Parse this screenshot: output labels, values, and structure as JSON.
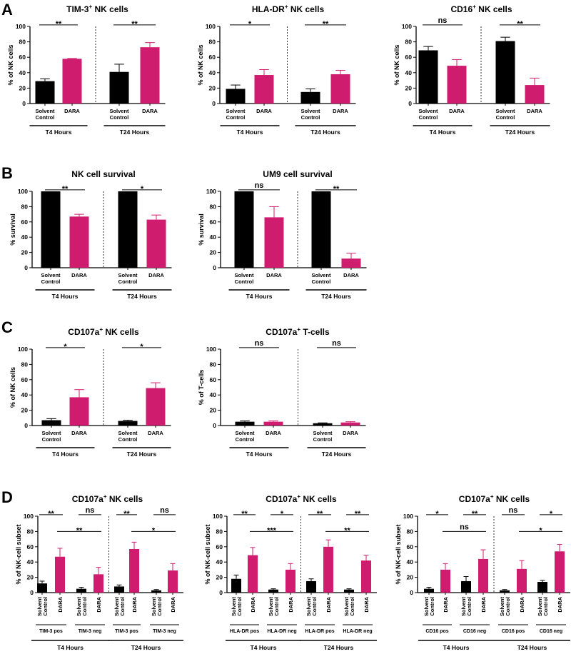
{
  "panel_labels": {
    "A": "A",
    "B": "B",
    "C": "C",
    "D": "D"
  },
  "colors": {
    "control": "#000000",
    "dara": "#d01c6e",
    "axis": "#000000"
  },
  "chart_data": [
    {
      "id": "A1",
      "panel": "A",
      "type": "bar",
      "title": "TIM-3",
      "title_sup": "+",
      "title_rest": " NK cells",
      "ylabel": "% of NK cells",
      "ylim": [
        0,
        100
      ],
      "yticks": [
        0,
        20,
        40,
        60,
        80,
        100
      ],
      "groups": [
        {
          "label": "T4 Hours",
          "bars": [
            {
              "cat": [
                "Solvent",
                "Control"
              ],
              "value": 29,
              "err": 3,
              "color": "control"
            },
            {
              "cat": [
                "DARA"
              ],
              "value": 58,
              "err": 0.5,
              "color": "dara"
            }
          ]
        },
        {
          "label": "T24 Hours",
          "bars": [
            {
              "cat": [
                "Solvent",
                "Control"
              ],
              "value": 41,
              "err": 10,
              "color": "control"
            },
            {
              "cat": [
                "DARA"
              ],
              "value": 73,
              "err": 6,
              "color": "dara"
            }
          ]
        }
      ],
      "sig": [
        {
          "a": 0,
          "b": 1,
          "text": "**",
          "level": 102
        },
        {
          "a": 2,
          "b": 3,
          "text": "**",
          "level": 102
        }
      ]
    },
    {
      "id": "A2",
      "panel": "A",
      "type": "bar",
      "title": "HLA-DR",
      "title_sup": "+",
      "title_rest": " NK cells",
      "ylabel": "% of NK cells",
      "ylim": [
        0,
        100
      ],
      "yticks": [
        0,
        20,
        40,
        60,
        80,
        100
      ],
      "groups": [
        {
          "label": "T4 Hours",
          "bars": [
            {
              "cat": [
                "Solvent",
                "Control"
              ],
              "value": 19,
              "err": 5,
              "color": "control"
            },
            {
              "cat": [
                "DARA"
              ],
              "value": 37,
              "err": 7,
              "color": "dara"
            }
          ]
        },
        {
          "label": "T24 Hours",
          "bars": [
            {
              "cat": [
                "Solvent",
                "Control"
              ],
              "value": 15,
              "err": 4,
              "color": "control"
            },
            {
              "cat": [
                "DARA"
              ],
              "value": 38,
              "err": 5,
              "color": "dara"
            }
          ]
        }
      ],
      "sig": [
        {
          "a": 0,
          "b": 1,
          "text": "*",
          "level": 102
        },
        {
          "a": 2,
          "b": 3,
          "text": "**",
          "level": 102
        }
      ]
    },
    {
      "id": "A3",
      "panel": "A",
      "type": "bar",
      "title": "CD16",
      "title_sup": "+",
      "title_rest": " NK cells",
      "ylabel": "% of NK cells",
      "ylim": [
        0,
        100
      ],
      "yticks": [
        0,
        20,
        40,
        60,
        80,
        100
      ],
      "groups": [
        {
          "label": "T4 Hours",
          "bars": [
            {
              "cat": [
                "Solvent",
                "Control"
              ],
              "value": 69,
              "err": 5,
              "color": "control"
            },
            {
              "cat": [
                "DARA"
              ],
              "value": 49,
              "err": 8,
              "color": "dara"
            }
          ]
        },
        {
          "label": "T24 Hours",
          "bars": [
            {
              "cat": [
                "Solvent",
                "Control"
              ],
              "value": 81,
              "err": 5,
              "color": "control"
            },
            {
              "cat": [
                "DARA"
              ],
              "value": 24,
              "err": 9,
              "color": "dara"
            }
          ]
        }
      ],
      "sig": [
        {
          "a": 0,
          "b": 1,
          "text": "ns",
          "level": 102
        },
        {
          "a": 2,
          "b": 3,
          "text": "**",
          "level": 102
        }
      ]
    },
    {
      "id": "B1",
      "panel": "B",
      "type": "bar",
      "title": "NK cell survival",
      "title_sup": "",
      "title_rest": "",
      "ylabel": "% survival",
      "ylim": [
        0,
        100
      ],
      "yticks": [
        0,
        20,
        40,
        60,
        80,
        100
      ],
      "groups": [
        {
          "label": "T4 Hours",
          "bars": [
            {
              "cat": [
                "Solvent",
                "Control"
              ],
              "value": 100,
              "err": 0,
              "color": "control"
            },
            {
              "cat": [
                "DARA"
              ],
              "value": 67,
              "err": 3,
              "color": "dara"
            }
          ]
        },
        {
          "label": "T24 Hours",
          "bars": [
            {
              "cat": [
                "Solvent",
                "Control"
              ],
              "value": 100,
              "err": 0,
              "color": "control"
            },
            {
              "cat": [
                "DARA"
              ],
              "value": 63,
              "err": 6,
              "color": "dara"
            }
          ]
        }
      ],
      "sig": [
        {
          "a": 0,
          "b": 1,
          "text": "**",
          "level": 102
        },
        {
          "a": 2,
          "b": 3,
          "text": "*",
          "level": 102
        }
      ]
    },
    {
      "id": "B2",
      "panel": "B",
      "type": "bar",
      "title": "UM9 cell survival",
      "title_sup": "",
      "title_rest": "",
      "ylabel": "% survival",
      "ylim": [
        0,
        100
      ],
      "yticks": [
        0,
        20,
        40,
        60,
        80,
        100
      ],
      "groups": [
        {
          "label": "T4 Hours",
          "bars": [
            {
              "cat": [
                "Solvent",
                "Control"
              ],
              "value": 100,
              "err": 0,
              "color": "control"
            },
            {
              "cat": [
                "DARA"
              ],
              "value": 66,
              "err": 14,
              "color": "dara"
            }
          ]
        },
        {
          "label": "T24 Hours",
          "bars": [
            {
              "cat": [
                "Solvent",
                "Control"
              ],
              "value": 100,
              "err": 0,
              "color": "control"
            },
            {
              "cat": [
                "DARA"
              ],
              "value": 12,
              "err": 7,
              "color": "dara"
            }
          ]
        }
      ],
      "sig": [
        {
          "a": 0,
          "b": 1,
          "text": "ns",
          "level": 102
        },
        {
          "a": 2,
          "b": 3,
          "text": "**",
          "level": 102
        }
      ]
    },
    {
      "id": "C1",
      "panel": "C",
      "type": "bar",
      "title": "CD107a",
      "title_sup": "+",
      "title_rest": " NK cells",
      "ylabel": "% of NK cells",
      "ylim": [
        0,
        100
      ],
      "yticks": [
        0,
        20,
        40,
        60,
        80,
        100
      ],
      "groups": [
        {
          "label": "T4 Hours",
          "bars": [
            {
              "cat": [
                "Solvent",
                "Control"
              ],
              "value": 7,
              "err": 2,
              "color": "control"
            },
            {
              "cat": [
                "DARA"
              ],
              "value": 37,
              "err": 10,
              "color": "dara"
            }
          ]
        },
        {
          "label": "T24 Hours",
          "bars": [
            {
              "cat": [
                "Solvent",
                "Control"
              ],
              "value": 6,
              "err": 1,
              "color": "control"
            },
            {
              "cat": [
                "DARA"
              ],
              "value": 49,
              "err": 7,
              "color": "dara"
            }
          ]
        }
      ],
      "sig": [
        {
          "a": 0,
          "b": 1,
          "text": "*",
          "level": 102
        },
        {
          "a": 2,
          "b": 3,
          "text": "*",
          "level": 102
        }
      ]
    },
    {
      "id": "C2",
      "panel": "C",
      "type": "bar",
      "title": "CD107a",
      "title_sup": "+",
      "title_rest": " T-cells",
      "ylabel": "% of T-cells",
      "ylim": [
        0,
        100
      ],
      "yticks": [
        0,
        20,
        40,
        60,
        80,
        100
      ],
      "groups": [
        {
          "label": "T4 Hours",
          "bars": [
            {
              "cat": [
                "Solvent",
                "Control"
              ],
              "value": 5,
              "err": 1,
              "color": "control"
            },
            {
              "cat": [
                "DARA"
              ],
              "value": 5,
              "err": 1,
              "color": "dara"
            }
          ]
        },
        {
          "label": "T24 Hours",
          "bars": [
            {
              "cat": [
                "Solvent",
                "Control"
              ],
              "value": 3,
              "err": 0.5,
              "color": "control"
            },
            {
              "cat": [
                "DARA"
              ],
              "value": 4,
              "err": 1,
              "color": "dara"
            }
          ]
        }
      ],
      "sig": [
        {
          "a": 0,
          "b": 1,
          "text": "ns",
          "level": 102
        },
        {
          "a": 2,
          "b": 3,
          "text": "ns",
          "level": 102
        }
      ]
    },
    {
      "id": "D1",
      "panel": "D",
      "type": "bar",
      "title": "CD107a",
      "title_sup": "+",
      "title_rest": " NK cells",
      "ylabel": "% of NK-cell subset",
      "ylim": [
        0,
        100
      ],
      "yticks": [
        0,
        20,
        40,
        60,
        80,
        100
      ],
      "groups": [
        {
          "label": "T4 Hours",
          "subgroups": [
            "TIM-3 pos",
            "TIM-3 neg"
          ],
          "bars": [
            {
              "cat": [
                "Solvent",
                "Control"
              ],
              "value": 12,
              "err": 3,
              "color": "control"
            },
            {
              "cat": [
                "DARA"
              ],
              "value": 47,
              "err": 11,
              "color": "dara"
            },
            {
              "cat": [
                "Solvent",
                "Control"
              ],
              "value": 5,
              "err": 2,
              "color": "control"
            },
            {
              "cat": [
                "DARA"
              ],
              "value": 24,
              "err": 9,
              "color": "dara"
            }
          ]
        },
        {
          "label": "T24 Hours",
          "subgroups": [
            "TIM-3 pos",
            "TIM-3 neg"
          ],
          "bars": [
            {
              "cat": [
                "Solvent",
                "Control"
              ],
              "value": 8,
              "err": 2,
              "color": "control"
            },
            {
              "cat": [
                "DARA"
              ],
              "value": 57,
              "err": 9,
              "color": "dara"
            },
            {
              "cat": [
                "Solvent",
                "Control"
              ],
              "value": 3,
              "err": 1,
              "color": "control"
            },
            {
              "cat": [
                "DARA"
              ],
              "value": 29,
              "err": 9,
              "color": "dara"
            }
          ]
        }
      ],
      "sig": [
        {
          "a": 0,
          "b": 1,
          "text": "**",
          "level": 102
        },
        {
          "a": 2,
          "b": 3,
          "text": "ns",
          "level": 102
        },
        {
          "a": 1,
          "b": 3,
          "text": "**",
          "level": 80
        },
        {
          "a": 4,
          "b": 5,
          "text": "**",
          "level": 102
        },
        {
          "a": 6,
          "b": 7,
          "text": "ns",
          "level": 102
        },
        {
          "a": 5,
          "b": 7,
          "text": "*",
          "level": 80
        }
      ]
    },
    {
      "id": "D2",
      "panel": "D",
      "type": "bar",
      "title": "CD107a",
      "title_sup": "+",
      "title_rest": " NK cells",
      "ylabel": "% of NK-cell subset",
      "ylim": [
        0,
        100
      ],
      "yticks": [
        0,
        20,
        40,
        60,
        80,
        100
      ],
      "groups": [
        {
          "label": "T4 Hours",
          "subgroups": [
            "HLA-DR pos",
            "HLA-DR neg"
          ],
          "bars": [
            {
              "cat": [
                "Solvent",
                "Control"
              ],
              "value": 18,
              "err": 5,
              "color": "control"
            },
            {
              "cat": [
                "DARA"
              ],
              "value": 49,
              "err": 10,
              "color": "dara"
            },
            {
              "cat": [
                "Solvent",
                "Control"
              ],
              "value": 4,
              "err": 1,
              "color": "control"
            },
            {
              "cat": [
                "DARA"
              ],
              "value": 30,
              "err": 8,
              "color": "dara"
            }
          ]
        },
        {
          "label": "T24 Hours",
          "subgroups": [
            "HLA-DR pos",
            "HLA-DR neg"
          ],
          "bars": [
            {
              "cat": [
                "Solvent",
                "Control"
              ],
              "value": 15,
              "err": 3,
              "color": "control"
            },
            {
              "cat": [
                "DARA"
              ],
              "value": 60,
              "err": 9,
              "color": "dara"
            },
            {
              "cat": [
                "Solvent",
                "Control"
              ],
              "value": 4,
              "err": 1,
              "color": "control"
            },
            {
              "cat": [
                "DARA"
              ],
              "value": 42,
              "err": 7,
              "color": "dara"
            }
          ]
        }
      ],
      "sig": [
        {
          "a": 0,
          "b": 1,
          "text": "**",
          "level": 102
        },
        {
          "a": 2,
          "b": 3,
          "text": "*",
          "level": 102
        },
        {
          "a": 1,
          "b": 3,
          "text": "***",
          "level": 80
        },
        {
          "a": 4,
          "b": 5,
          "text": "**",
          "level": 102
        },
        {
          "a": 6,
          "b": 7,
          "text": "**",
          "level": 102
        },
        {
          "a": 5,
          "b": 7,
          "text": "**",
          "level": 80
        }
      ]
    },
    {
      "id": "D3",
      "panel": "D",
      "type": "bar",
      "title": "CD107a",
      "title_sup": "+",
      "title_rest": " NK cells",
      "ylabel": "% of NK-cell subset",
      "ylim": [
        0,
        100
      ],
      "yticks": [
        0,
        20,
        40,
        60,
        80,
        100
      ],
      "groups": [
        {
          "label": "T4 Hours",
          "subgroups": [
            "CD16 pos",
            "CD16 neg"
          ],
          "bars": [
            {
              "cat": [
                "Solvent",
                "Control"
              ],
              "value": 5,
              "err": 2,
              "color": "control"
            },
            {
              "cat": [
                "DARA"
              ],
              "value": 30,
              "err": 8,
              "color": "dara"
            },
            {
              "cat": [
                "Solvent",
                "Control"
              ],
              "value": 15,
              "err": 6,
              "color": "control"
            },
            {
              "cat": [
                "DARA"
              ],
              "value": 44,
              "err": 12,
              "color": "dara"
            }
          ]
        },
        {
          "label": "T24 Hours",
          "subgroups": [
            "CD16 pos",
            "CD16 neg"
          ],
          "bars": [
            {
              "cat": [
                "Solvent",
                "Control"
              ],
              "value": 3,
              "err": 1,
              "color": "control"
            },
            {
              "cat": [
                "DARA"
              ],
              "value": 31,
              "err": 11,
              "color": "dara"
            },
            {
              "cat": [
                "Solvent",
                "Control"
              ],
              "value": 14,
              "err": 2,
              "color": "control"
            },
            {
              "cat": [
                "DARA"
              ],
              "value": 54,
              "err": 9,
              "color": "dara"
            }
          ]
        }
      ],
      "sig": [
        {
          "a": 0,
          "b": 1,
          "text": "*",
          "level": 102
        },
        {
          "a": 2,
          "b": 3,
          "text": "**",
          "level": 102
        },
        {
          "a": 1,
          "b": 3,
          "text": "ns",
          "level": 80
        },
        {
          "a": 4,
          "b": 5,
          "text": "ns",
          "level": 102
        },
        {
          "a": 6,
          "b": 7,
          "text": "*",
          "level": 102
        },
        {
          "a": 5,
          "b": 7,
          "text": "*",
          "level": 80
        }
      ]
    }
  ]
}
